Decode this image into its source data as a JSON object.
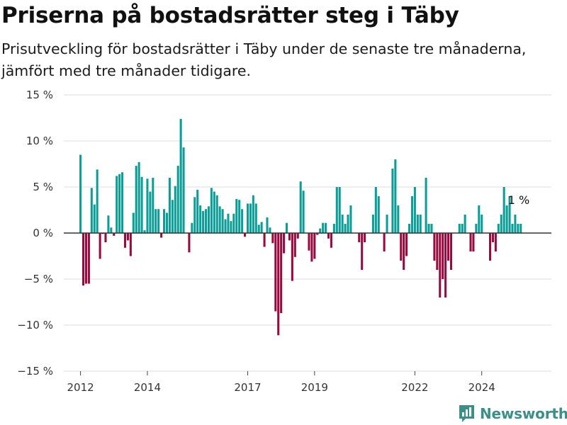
{
  "header": {
    "title": "Priserna på bostadsrätter steg i Täby",
    "subtitle": "Prisutveckling för bostadsrätter i Täby under de senaste tre månaderna, jämfört med tre månader tidigare."
  },
  "brand": {
    "name": "Newsworthy",
    "icon": "bar-chart-logo-icon",
    "color": "#3c8f86"
  },
  "colors": {
    "positive": "#0c9e96",
    "negative": "#970b3f",
    "grid": "#dedede",
    "zero_line": "#333333"
  },
  "chart_data": {
    "type": "bar",
    "title": "Priserna på bostadsrätter steg i Täby",
    "subtitle": "Prisutveckling för bostadsrätter i Täby under de senaste tre månaderna, jämfört med tre månader tidigare.",
    "xlabel": "",
    "ylabel": "",
    "x_start": "2012-01",
    "x_interval": "month",
    "x_range": [
      "2011-07",
      "2026-02"
    ],
    "ylim": [
      -15,
      15
    ],
    "y_ticks": [
      15,
      10,
      5,
      0,
      -5,
      -10,
      -15
    ],
    "y_tick_labels": [
      "15 %",
      "10 %",
      "5 %",
      "0 %",
      "−5 %",
      "−10 %",
      "−15 %"
    ],
    "x_ticks": [
      "2012",
      "2014",
      "2017",
      "2019",
      "2022",
      "2024"
    ],
    "grid": true,
    "legend": "none",
    "values": [
      8.5,
      -5.7,
      -5.5,
      -5.5,
      4.9,
      3.1,
      6.9,
      -2.8,
      -0.1,
      -1.0,
      1.9,
      0.6,
      -0.3,
      6.2,
      6.4,
      6.6,
      -1.6,
      -0.8,
      -2.5,
      2.2,
      7.3,
      7.7,
      6.1,
      0.3,
      5.9,
      4.5,
      6.0,
      2.6,
      2.6,
      -0.5,
      2.6,
      2.2,
      6.0,
      3.6,
      5.1,
      7.3,
      12.4,
      9.3,
      0.0,
      -2.1,
      1.1,
      3.9,
      4.7,
      3.0,
      2.4,
      2.6,
      2.9,
      4.9,
      4.5,
      4.1,
      2.9,
      2.6,
      1.5,
      2.1,
      1.3,
      2.1,
      3.7,
      3.6,
      2.6,
      -0.4,
      3.2,
      3.2,
      4.1,
      3.2,
      0.9,
      1.2,
      -1.5,
      1.7,
      0.6,
      -1.1,
      -8.5,
      -11.1,
      -8.7,
      -2.2,
      1.1,
      -0.8,
      -5.2,
      -2.6,
      -0.6,
      5.6,
      4.6,
      0.0,
      -1.9,
      -3.1,
      -2.8,
      -0.2,
      0.5,
      1.1,
      1.1,
      -0.6,
      -1.6,
      1.0,
      5.0,
      5.0,
      2.0,
      1.0,
      2.0,
      3.0,
      0.0,
      0.0,
      -1.0,
      -4.0,
      -1.0,
      0.0,
      0.0,
      2.0,
      5.0,
      4.0,
      0.0,
      -2.0,
      2.0,
      0.0,
      7.0,
      8.0,
      3.0,
      -3.0,
      -4.0,
      -2.5,
      1.0,
      4.0,
      5.0,
      2.0,
      2.0,
      0.0,
      6.0,
      1.0,
      1.0,
      -3.0,
      -4.0,
      -7.0,
      -5.0,
      -7.0,
      -3.0,
      -4.0,
      0.0,
      0.0,
      1.0,
      1.0,
      2.0,
      0.0,
      -2.0,
      -2.0,
      1.0,
      3.0,
      2.0,
      0.0,
      0.0,
      -3.0,
      -1.0,
      -2.0,
      1.0,
      2.0,
      5.0,
      3.0,
      4.0,
      1.0,
      2.0,
      1.0,
      1.0
    ],
    "annotations": [
      {
        "text": "1 %",
        "at": "last",
        "value": 1.0
      }
    ]
  }
}
